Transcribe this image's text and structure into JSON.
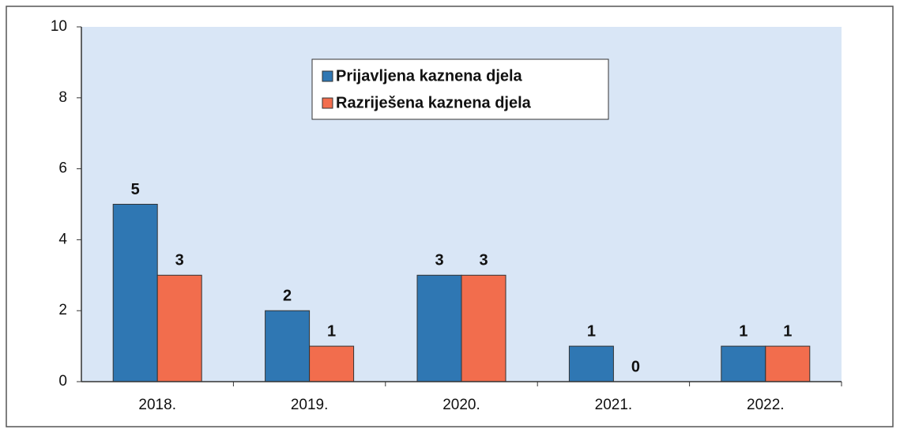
{
  "chart_data": {
    "type": "bar",
    "categories": [
      "2018.",
      "2019.",
      "2020.",
      "2021.",
      "2022."
    ],
    "series": [
      {
        "name": "Prijavljena kaznena djela",
        "color": "#2f77b3",
        "values": [
          5,
          2,
          3,
          1,
          1
        ]
      },
      {
        "name": "Razriješena kaznena djela",
        "color": "#f26d4d",
        "values": [
          3,
          1,
          3,
          0,
          1
        ]
      }
    ],
    "ylim": [
      0,
      10
    ],
    "yticks": [
      0,
      2,
      4,
      6,
      8,
      10
    ],
    "legend": "top"
  }
}
